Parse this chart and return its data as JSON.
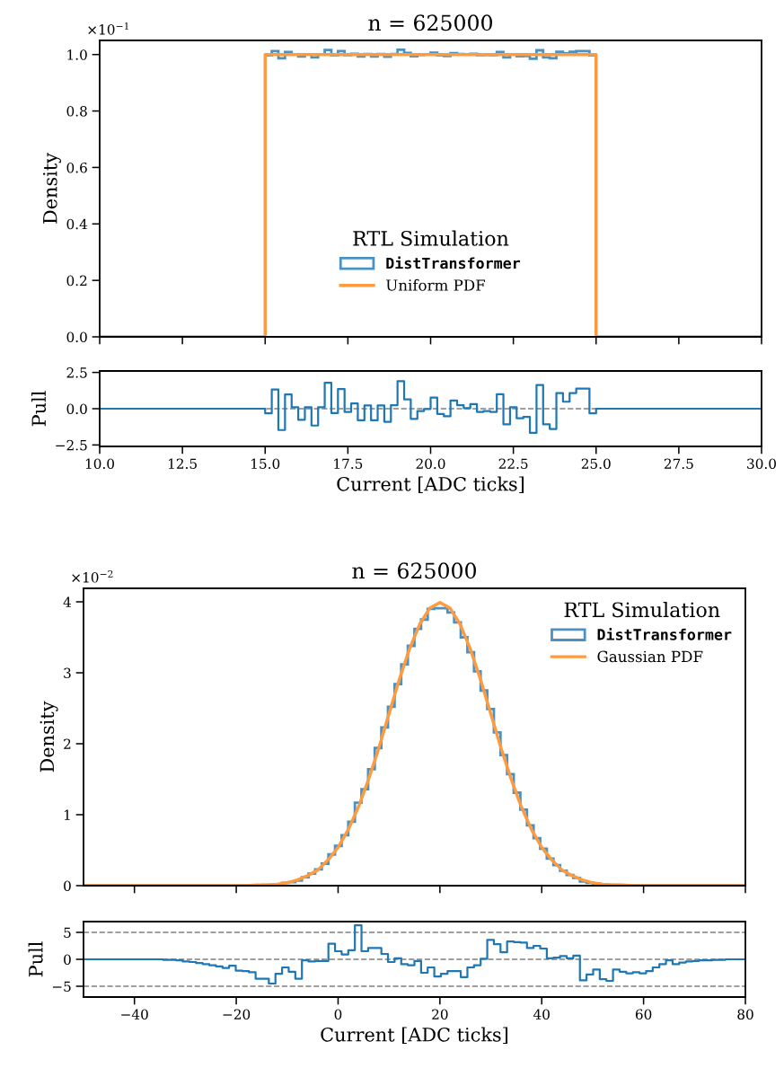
{
  "chart_data": [
    {
      "type": "histogram",
      "title": "n = 625000",
      "ylabel": "Density",
      "legend_title": "RTL Simulation",
      "legend": "bottom",
      "tick_labels": "y",
      "annotations": [
        "×10$^{−1}$"
      ],
      "xlim": [
        10,
        30
      ],
      "xticks": [
        10,
        12.5,
        15,
        17.5,
        20,
        22.5,
        25,
        27.5,
        30
      ],
      "ylim": [
        0,
        1.05
      ],
      "yticks": [
        {
          "value": 0,
          "label": "0.0"
        },
        0.2,
        0.4,
        0.6,
        0.8,
        {
          "value": 1,
          "label": "1.0"
        }
      ],
      "series": [
        {
          "type": "histogram",
          "name": "DistTransformer",
          "color": "#4b92c3",
          "bins": [
            15,
            15.2,
            15.4,
            15.6,
            15.8,
            16,
            16.2,
            16.4,
            16.6,
            16.8,
            17,
            17.2,
            17.4,
            17.6,
            17.8,
            18,
            18.2,
            18.4,
            18.6,
            18.8,
            19,
            19.2,
            19.4,
            19.6,
            19.8,
            20,
            20.2,
            20.4,
            20.6,
            20.8,
            21,
            21.2,
            21.4,
            21.6,
            21.8,
            22,
            22.2,
            22.4,
            22.6,
            22.8,
            23,
            23.2,
            23.4,
            23.6,
            23.8,
            24,
            24.2,
            24.4,
            24.6,
            24.8,
            25
          ],
          "values": [
            0.997,
            1.012,
            0.987,
            1.009,
            1.001,
            0.993,
            1.001,
            0.99,
            1.001,
            1.016,
            0.997,
            1.012,
            0.998,
            1.003,
            0.993,
            1.002,
            0.993,
            1.002,
            0.992,
            1.002,
            1.017,
            1.006,
            0.994,
            0.999,
            1.0,
            1.007,
            0.997,
            0.995,
            1.005,
            1.002,
            1.0,
            1.003,
            0.998,
            0.999,
            0.998,
            1.009,
            0.99,
            1.001,
            0.994,
            0.995,
            0.985,
            1.015,
            0.99,
            0.987,
            1.01,
            1.004,
            1.01,
            1.012,
            1.012,
            0.997
          ]
        },
        {
          "type": "line",
          "name": "Uniform PDF",
          "color": "#ff9a3e",
          "x": [
            10,
            15,
            15,
            25,
            25,
            30
          ],
          "values": [
            0,
            0,
            1.0,
            1.0,
            0,
            0
          ]
        }
      ]
    },
    {
      "type": "step",
      "xlabel": "Current [ADC ticks]",
      "ylabel": "Pull",
      "xlim": [
        10,
        30
      ],
      "xticks": [
        {
          "value": 10,
          "label": "10.0"
        },
        12.5,
        {
          "value": 15,
          "label": "15.0"
        },
        17.5,
        {
          "value": 20,
          "label": "20.0"
        },
        22.5,
        {
          "value": 25,
          "label": "25.0"
        },
        27.5,
        {
          "value": 30,
          "label": "30.0"
        }
      ],
      "ylim": [
        -2.6,
        2.6
      ],
      "yticks": [
        {
          "value": -2.5,
          "label": "−2.5"
        },
        {
          "value": 0,
          "label": "0.0"
        },
        2.5
      ],
      "ref_lines": [
        {
          "axis": "y",
          "value": 0,
          "color": "#808080",
          "line_style": "dashed"
        }
      ],
      "series": [
        {
          "color": "#1f77b4",
          "x": [
            10,
            15,
            15.2,
            15.4,
            15.6,
            15.8,
            16,
            16.2,
            16.4,
            16.6,
            16.8,
            17,
            17.2,
            17.4,
            17.6,
            17.8,
            18,
            18.2,
            18.4,
            18.6,
            18.8,
            19,
            19.2,
            19.4,
            19.6,
            19.8,
            20,
            20.2,
            20.4,
            20.6,
            20.8,
            21,
            21.2,
            21.4,
            21.6,
            21.8,
            22,
            22.2,
            22.4,
            22.6,
            22.8,
            23,
            23.2,
            23.4,
            23.6,
            23.8,
            24,
            24.2,
            24.4,
            24.6,
            24.8,
            25,
            30
          ],
          "values": [
            0,
            -0.32,
            1.33,
            -1.47,
            0.98,
            0.1,
            -0.76,
            0.1,
            -1.16,
            0.1,
            1.79,
            -0.3,
            1.35,
            -0.22,
            0.36,
            -0.8,
            0.22,
            -0.8,
            0.22,
            -0.9,
            0.24,
            1.89,
            0.64,
            -0.7,
            -0.16,
            -0.02,
            0.76,
            -0.36,
            -0.52,
            0.56,
            0.24,
            0.04,
            0.32,
            -0.22,
            -0.16,
            -0.22,
            1.0,
            -1.08,
            0.1,
            -0.66,
            -0.56,
            -1.67,
            1.63,
            -1.08,
            -1.4,
            1.08,
            0.48,
            1.08,
            1.39,
            1.39,
            -0.32,
            0,
            0
          ]
        }
      ]
    },
    {
      "type": "histogram",
      "title": "n = 625000",
      "ylabel": "Density",
      "legend_title": "RTL Simulation",
      "legend": "top right",
      "tick_labels": "y",
      "annotations": [
        "×10$^{−2}$"
      ],
      "xlim": [
        -50,
        80
      ],
      "xticks": [
        -40,
        -20,
        0,
        20,
        40,
        60,
        80
      ],
      "ylim": [
        0,
        4.19
      ],
      "yticks": [
        0,
        1,
        2,
        3,
        4
      ],
      "series": [
        {
          "type": "histogram",
          "name": "DistTransformer",
          "color": "#4b92c3",
          "bins": [
            -50,
            -48.7,
            -47.4,
            -46.1,
            -44.8,
            -43.5,
            -42.2,
            -40.9,
            -39.6,
            -38.3,
            -37,
            -35.7,
            -34.4,
            -33.1,
            -31.8,
            -30.5,
            -29.2,
            -27.9,
            -26.6,
            -25.3,
            -24,
            -22.7,
            -21.4,
            -20.1,
            -18.8,
            -17.5,
            -16.2,
            -14.9,
            -13.6,
            -12.3,
            -11,
            -9.7,
            -8.4,
            -7.1,
            -5.8,
            -4.5,
            -3.2,
            -1.9,
            -0.6,
            0.7,
            2,
            3.3,
            4.6,
            5.9,
            7.2,
            8.5,
            9.8,
            11.1,
            12.4,
            13.7,
            15,
            16.3,
            17.6,
            18.9,
            20.2,
            21.5,
            22.8,
            24.1,
            25.4,
            26.7,
            28,
            29.3,
            30.6,
            31.9,
            33.2,
            34.5,
            35.8,
            37.1,
            38.4,
            39.7,
            41,
            42.3,
            43.6,
            44.9,
            46.2,
            47.5,
            48.8,
            50.1,
            51.4,
            52.7,
            54,
            55.3,
            56.6,
            57.9,
            59.2,
            60.5,
            61.8,
            63.1,
            64.4,
            65.7,
            67,
            68.3,
            69.6,
            70.9,
            72.2,
            73.5,
            74.8,
            76.1,
            77.4,
            78.7,
            80
          ],
          "values": [
            0,
            0,
            0,
            0,
            0,
            0,
            0,
            0,
            0,
            0,
            0,
            0,
            0,
            0,
            0,
            0,
            0,
            0,
            0,
            0,
            0,
            0,
            0,
            0,
            0,
            0,
            0,
            0.01,
            0.01,
            0.02,
            0.04,
            0.05,
            0.07,
            0.12,
            0.17,
            0.23,
            0.31,
            0.44,
            0.56,
            0.71,
            0.9,
            1.17,
            1.36,
            1.64,
            1.94,
            2.23,
            2.52,
            2.84,
            3.12,
            3.38,
            3.62,
            3.75,
            3.9,
            3.91,
            3.91,
            3.85,
            3.71,
            3.5,
            3.29,
            3.02,
            2.75,
            2.49,
            2.16,
            1.84,
            1.57,
            1.31,
            1.07,
            0.85,
            0.67,
            0.52,
            0.38,
            0.29,
            0.21,
            0.15,
            0.11,
            0.06,
            0.04,
            0.03,
            0.02,
            0.01,
            0.01,
            0,
            0,
            0,
            0,
            0,
            0,
            0,
            0,
            0,
            0,
            0,
            0,
            0,
            0,
            0,
            0,
            0,
            0,
            0
          ]
        },
        {
          "type": "line",
          "name": "Gaussian PDF",
          "color": "#ff9a3e",
          "x": [
            -50,
            -48,
            -46,
            -44,
            -42,
            -40,
            -38,
            -36,
            -34,
            -32,
            -30,
            -28,
            -26,
            -24,
            -22,
            -20,
            -18,
            -16,
            -14,
            -12,
            -10,
            -8,
            -6,
            -4,
            -2,
            0,
            2,
            4,
            6,
            8,
            10,
            12,
            14,
            16,
            18,
            20,
            22,
            24,
            26,
            28,
            30,
            32,
            34,
            36,
            38,
            40,
            42,
            44,
            46,
            48,
            50,
            52,
            54,
            56,
            58,
            60,
            62,
            64,
            66,
            68,
            70,
            72,
            74,
            76,
            78,
            80
          ],
          "values": [
            0,
            0,
            0,
            0,
            0,
            0,
            0,
            0,
            0,
            0,
            0,
            0,
            0,
            0,
            0,
            0,
            0,
            0.01,
            0.01,
            0.02,
            0.04,
            0.08,
            0.14,
            0.22,
            0.36,
            0.54,
            0.79,
            1.11,
            1.5,
            1.94,
            2.42,
            2.9,
            3.33,
            3.68,
            3.91,
            3.99,
            3.91,
            3.68,
            3.33,
            2.9,
            2.42,
            1.94,
            1.5,
            1.11,
            0.79,
            0.54,
            0.36,
            0.22,
            0.14,
            0.08,
            0.04,
            0.02,
            0.01,
            0.01,
            0,
            0,
            0,
            0,
            0,
            0,
            0,
            0,
            0,
            0,
            0,
            0
          ]
        }
      ]
    },
    {
      "type": "step",
      "xlabel": "Current [ADC ticks]",
      "ylabel": "Pull",
      "xlim": [
        -50,
        80
      ],
      "xticks": [
        {
          "value": -40,
          "label": "−40"
        },
        {
          "value": -20,
          "label": "−20"
        },
        0,
        20,
        40,
        60,
        80
      ],
      "ylim": [
        -7,
        7
      ],
      "yticks": [
        {
          "value": -5,
          "label": "−5"
        },
        0,
        5
      ],
      "ref_lines": [
        {
          "axis": "y",
          "value": -5,
          "color": "#808080",
          "line_style": "dashed"
        },
        {
          "axis": "y",
          "value": 0,
          "color": "#808080",
          "line_style": "dashed"
        },
        {
          "axis": "y",
          "value": 5,
          "color": "#808080",
          "line_style": "dashed"
        }
      ],
      "series": [
        {
          "color": "#1f77b4",
          "x": [
            -50,
            -48.7,
            -47.4,
            -46.1,
            -44.8,
            -43.5,
            -42.2,
            -40.9,
            -39.6,
            -38.3,
            -37,
            -35.7,
            -34.4,
            -33.1,
            -31.8,
            -30.5,
            -29.2,
            -27.9,
            -26.6,
            -25.3,
            -24,
            -22.7,
            -21.4,
            -20.1,
            -18.8,
            -17.5,
            -16.2,
            -14.9,
            -13.6,
            -12.3,
            -11,
            -9.7,
            -8.4,
            -7.1,
            -5.8,
            -4.5,
            -3.2,
            -1.9,
            -0.6,
            0.7,
            2,
            3.3,
            4.6,
            5.9,
            7.2,
            8.5,
            9.8,
            11.1,
            12.4,
            13.7,
            15,
            16.3,
            17.6,
            18.9,
            20.2,
            21.5,
            22.8,
            24.1,
            25.4,
            26.7,
            28,
            29.3,
            30.6,
            31.9,
            33.2,
            34.5,
            35.8,
            37.1,
            38.4,
            39.7,
            41,
            42.3,
            43.6,
            44.9,
            46.2,
            47.5,
            48.8,
            50.1,
            51.4,
            52.7,
            54,
            55.3,
            56.6,
            57.9,
            59.2,
            60.5,
            61.8,
            63.1,
            64.4,
            65.7,
            67,
            68.3,
            69.6,
            70.9,
            72.2,
            73.5,
            74.8,
            76.1,
            77.4,
            78.7,
            80
          ],
          "values": [
            0,
            0,
            0,
            0,
            0,
            0,
            0,
            0,
            0,
            0,
            0,
            0,
            -0.1,
            -0.1,
            -0.2,
            -0.4,
            -0.5,
            -0.7,
            -0.9,
            -1.1,
            -1.3,
            -1.6,
            -1.2,
            -2.1,
            -2.2,
            -2.4,
            -3.6,
            -3.6,
            -4.5,
            -2.7,
            -1.5,
            -2.3,
            -3.6,
            -0.2,
            -0.4,
            -0.3,
            -0.3,
            2.9,
            1.5,
            0.9,
            1.7,
            6.3,
            1.5,
            2.1,
            2.1,
            1.0,
            -0.5,
            0.2,
            -0.9,
            -1.1,
            -0.3,
            -2.5,
            -1.5,
            -3.2,
            -2.7,
            -2.2,
            -2.2,
            -3.3,
            -1.5,
            -1.1,
            0.1,
            3.6,
            2.8,
            1.3,
            3.3,
            3.2,
            3.1,
            2.1,
            2.5,
            2.0,
            0.2,
            0.3,
            0.6,
            0.2,
            0.7,
            -3.9,
            -2.8,
            -1.9,
            -3.7,
            -4.0,
            -1.9,
            -2.3,
            -2.6,
            -2.4,
            -2.6,
            -2.2,
            -1.5,
            -0.9,
            -0.2,
            -0.9,
            -0.6,
            -0.4,
            -0.3,
            -0.2,
            -0.2,
            -0.1,
            -0.1,
            0,
            0,
            0,
            0
          ]
        }
      ]
    }
  ]
}
